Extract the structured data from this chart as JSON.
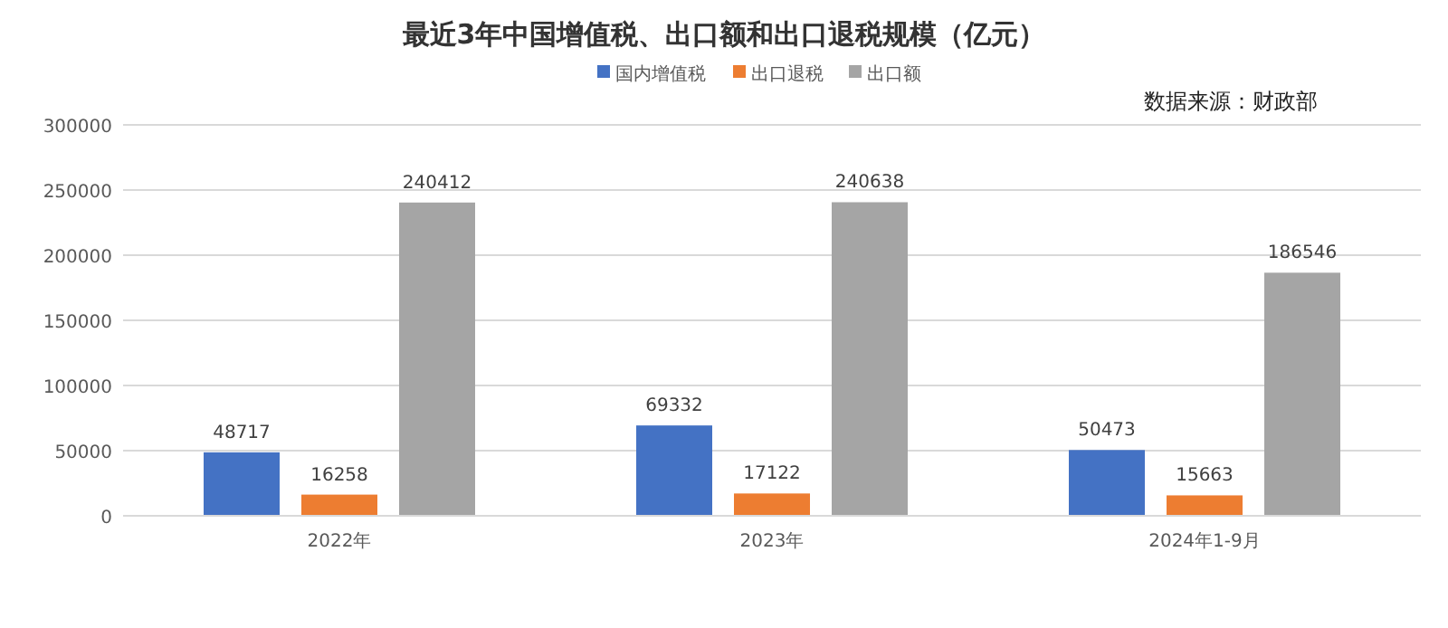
{
  "chart_data": {
    "type": "bar",
    "title": "最近3年中国增值税、出口额和出口退税规模（亿元）",
    "categories": [
      "2022年",
      "2023年",
      "2024年1-9月"
    ],
    "series": [
      {
        "name": "国内增值税",
        "color": "#4472c4",
        "values": [
          48717,
          69332,
          50473
        ]
      },
      {
        "name": "出口退税",
        "color": "#ed7d31",
        "values": [
          16258,
          17122,
          15663
        ]
      },
      {
        "name": "出口额",
        "color": "#a5a5a5",
        "values": [
          240412,
          240638,
          186546
        ]
      }
    ],
    "ylim": [
      0,
      300000
    ],
    "yticks": [
      0,
      50000,
      100000,
      150000,
      200000,
      250000,
      300000
    ],
    "grid": "y",
    "legend": "top",
    "data_labels": true,
    "annotations": [
      "数据来源：财政部"
    ]
  }
}
